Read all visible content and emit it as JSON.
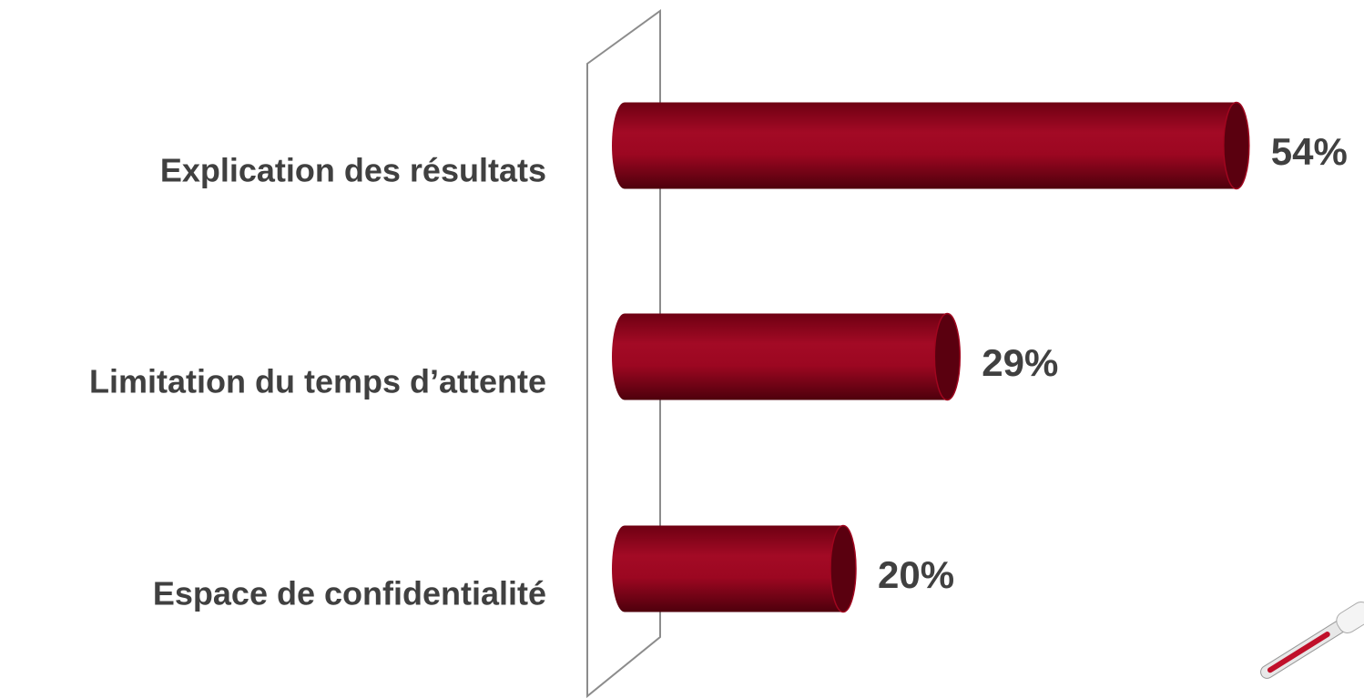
{
  "chart_data": {
    "type": "bar",
    "categories": [
      "Explication des résultats",
      "Limitation du temps d’attente",
      "Espace de confidentialité"
    ],
    "values": [
      54,
      29,
      20
    ],
    "value_labels": [
      "54%",
      "29%",
      "20%"
    ],
    "color": "#a0061f"
  }
}
